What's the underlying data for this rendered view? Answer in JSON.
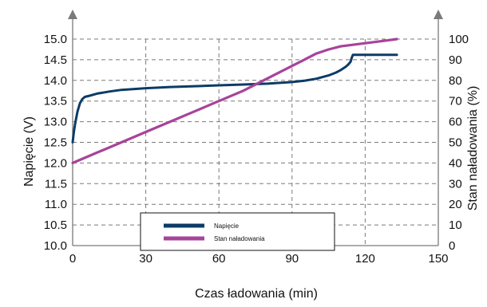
{
  "chart_data": {
    "type": "line",
    "xlabel": "Czas ładowania (min)",
    "ylabel_left": "Napięcie (V)",
    "ylabel_right": "Stan naładowania (%)",
    "x_ticks": [
      0,
      30,
      60,
      90,
      120,
      150
    ],
    "xlim": [
      0,
      150
    ],
    "y_left_ticks": [
      "10.0",
      "10.5",
      "11.0",
      "11.5",
      "12.0",
      "12.5",
      "13.0",
      "13.5",
      "14.0",
      "14.5",
      "15.0"
    ],
    "ylim_left": [
      10.0,
      15.0
    ],
    "y_right_ticks": [
      "0",
      "10",
      "20",
      "30",
      "40",
      "50",
      "60",
      "70",
      "80",
      "90",
      "100"
    ],
    "ylim_right": [
      0,
      100
    ],
    "grid": true,
    "legend_position": "bottom-center",
    "series": [
      {
        "name": "Napięcie",
        "axis": "left",
        "color": "#0d3b66",
        "x": [
          0,
          0.5,
          1,
          2,
          3,
          4,
          5,
          7,
          10,
          15,
          20,
          30,
          40,
          50,
          60,
          70,
          80,
          90,
          95,
          100,
          105,
          108,
          110,
          112,
          113,
          114,
          114.5,
          115,
          120,
          125,
          130,
          133
        ],
        "y": [
          12.5,
          12.75,
          12.95,
          13.25,
          13.45,
          13.55,
          13.6,
          13.63,
          13.68,
          13.73,
          13.77,
          13.81,
          13.84,
          13.86,
          13.88,
          13.9,
          13.92,
          13.96,
          13.99,
          14.04,
          14.12,
          14.19,
          14.25,
          14.33,
          14.38,
          14.45,
          14.55,
          14.62,
          14.62,
          14.62,
          14.62,
          14.62
        ]
      },
      {
        "name": "Stan naładowania",
        "axis": "right",
        "color": "#a8439a",
        "x": [
          0,
          10,
          20,
          30,
          40,
          50,
          60,
          70,
          80,
          90,
          95,
          100,
          105,
          110,
          120,
          130,
          133
        ],
        "y": [
          40,
          45,
          50,
          55,
          60,
          65,
          70,
          75,
          81,
          87,
          90,
          93,
          95,
          96.5,
          98,
          99.5,
          100
        ]
      }
    ]
  }
}
